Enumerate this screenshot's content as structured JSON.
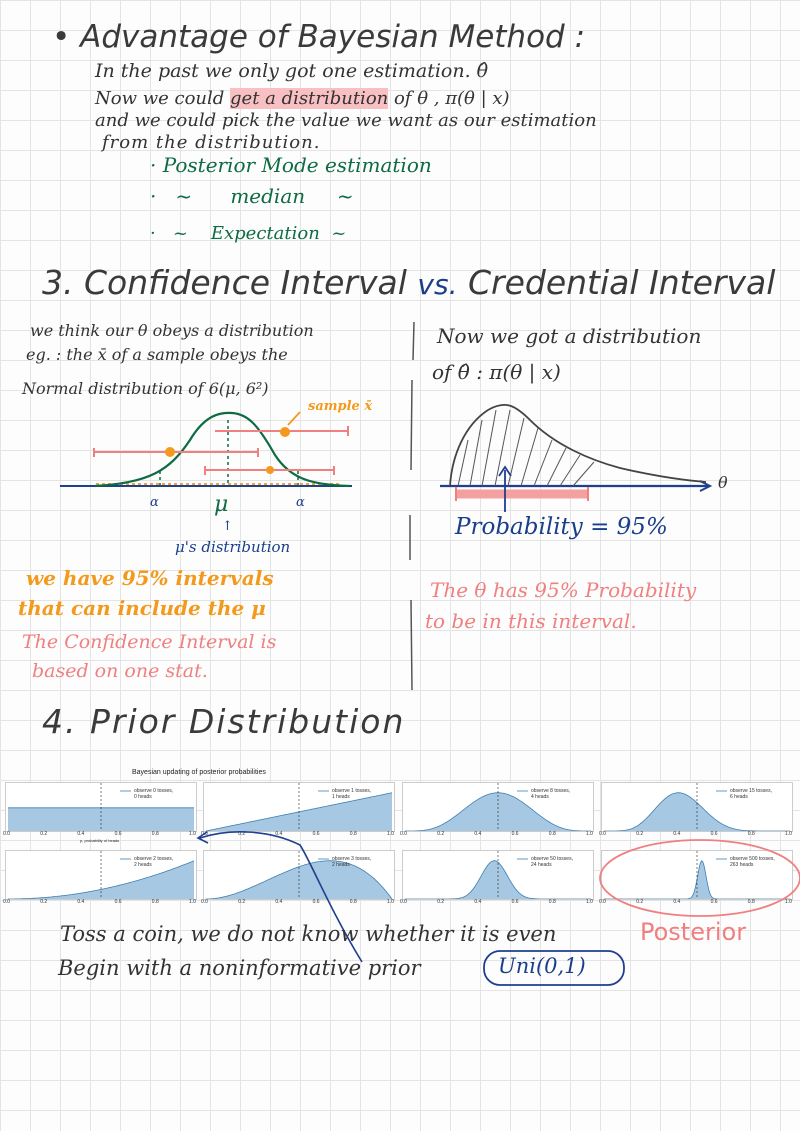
{
  "section1": {
    "title": "Advantage of Bayesian Method :",
    "line1": "In the past we only got one estimation. θ̂",
    "line2a": "Now we could ",
    "line2b": "get a distribution",
    "line2c": " of θ , π(θ | x)",
    "line3": "and we could pick the value we want as our estimation",
    "line4": "from the distribution.",
    "bullets": [
      "· Posterior Mode estimation",
      "·   ~      median     ~",
      "·   ~    Expectation  ~"
    ]
  },
  "section3": {
    "title_a": "3. Confidence Interval ",
    "title_vs": "vs.",
    "title_b": " Credential Interval",
    "left": {
      "line1": "we think our θ obeys a distribution",
      "line2": "eg. : the x̄ of a sample obeys the",
      "line3": "Normal distribution of 6(μ, 6²)",
      "sample_label": "sample x̄",
      "alpha_left": "α",
      "mu": "μ",
      "alpha_right": "α",
      "mu_dist": "μ's distribution",
      "orange1": "we have 95% intervals",
      "orange2": "that can include the μ",
      "pink1": "The Confidence Interval is",
      "pink2": "based on one stat."
    },
    "right": {
      "line1": "Now we got a distribution",
      "line2": "of θ̂ : π(θ | x)",
      "theta_axis": "θ",
      "prob": "Probability = 95%",
      "pink1": "The θ has 95% Probability",
      "pink2": "to be in this interval."
    }
  },
  "section4": {
    "title": "4. Prior Distribution",
    "figure_title": "Bayesian updating of posterior probabilities",
    "xlabel": "p, probability of heads",
    "xticks": [
      "0.0",
      "0.2",
      "0.4",
      "0.6",
      "0.8",
      "1.0"
    ],
    "note1": "Toss a coin, we do not know whether it is even",
    "note_posterior": "Posterior",
    "note2": "Begin with a noninformative prior",
    "prior": "Uni(0,1)"
  },
  "chart_data": {
    "type": "area",
    "title": "Bayesian updating of posterior probabilities",
    "xlabel": "p, probability of heads",
    "xlim": [
      0,
      1
    ],
    "panels": [
      {
        "legend": "observe 0 tosses,\n0 heads",
        "tosses": 0,
        "heads": 0
      },
      {
        "legend": "observe 1 tosses,\n1 heads",
        "tosses": 1,
        "heads": 1
      },
      {
        "legend": "observe 8 tosses,\n4 heads",
        "tosses": 8,
        "heads": 4
      },
      {
        "legend": "observe 15 tosses,\n6 heads",
        "tosses": 15,
        "heads": 6
      },
      {
        "legend": "observe 2 tosses,\n2 heads",
        "tosses": 2,
        "heads": 2
      },
      {
        "legend": "observe 3 tosses,\n2 heads",
        "tosses": 3,
        "heads": 2
      },
      {
        "legend": "observe 50 tosses,\n24 heads",
        "tosses": 50,
        "heads": 24
      },
      {
        "legend": "observe 500 tosses,\n263 heads",
        "tosses": 500,
        "heads": 263
      }
    ],
    "reference_line_x": 0.5,
    "colors": {
      "fill": "#a6c8e3",
      "line": "#3d7fb3"
    }
  }
}
